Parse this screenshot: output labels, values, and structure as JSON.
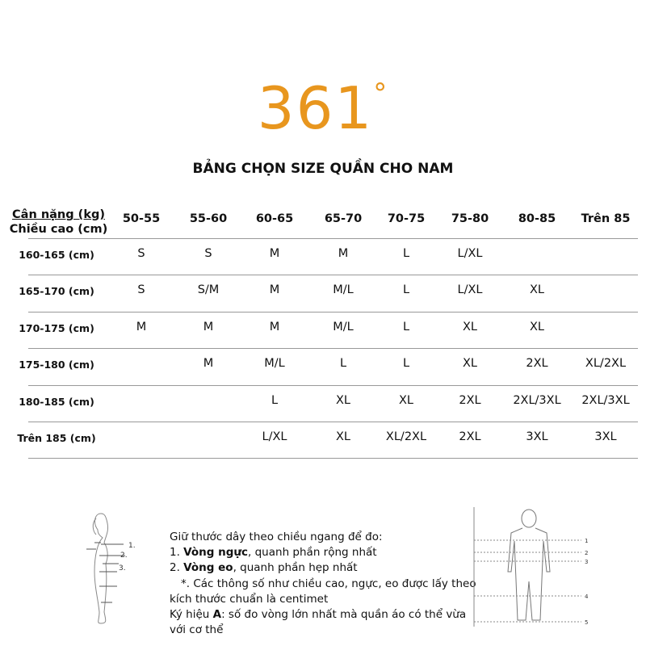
{
  "brand": {
    "logo": "361°",
    "color": "#e8961e"
  },
  "title": "BẢNG CHỌN SIZE QUẦN CHO NAM",
  "table": {
    "header_weight": "Cân nặng (kg)",
    "header_height": "Chiều cao (cm)",
    "columns": [
      "50-55",
      "55-60",
      "60-65",
      "65-70",
      "70-75",
      "75-80",
      "80-85",
      "Trên 85"
    ],
    "rows": [
      {
        "label": "160-165 (cm)",
        "cells": [
          "S",
          "S",
          "M",
          "M",
          "L",
          "L/XL",
          "",
          ""
        ]
      },
      {
        "label": "165-170 (cm)",
        "cells": [
          "S",
          "S/M",
          "M",
          "M/L",
          "L",
          "L/XL",
          "XL",
          ""
        ]
      },
      {
        "label": "170-175 (cm)",
        "cells": [
          "M",
          "M",
          "M",
          "M/L",
          "L",
          "XL",
          "XL",
          ""
        ]
      },
      {
        "label": "175-180 (cm)",
        "cells": [
          "",
          "M",
          "M/L",
          "L",
          "L",
          "XL",
          "2XL",
          "XL/2XL"
        ]
      },
      {
        "label": "180-185 (cm)",
        "cells": [
          "",
          "",
          "L",
          "XL",
          "XL",
          "2XL",
          "2XL/3XL",
          "2XL/3XL"
        ]
      },
      {
        "label": "Trên 185 (cm)",
        "cells": [
          "",
          "",
          "L/XL",
          "XL",
          "XL/2XL",
          "2XL",
          "3XL",
          "3XL"
        ]
      }
    ]
  },
  "guide": {
    "intro": "Giữ thước dây theo chiều ngang để đo:",
    "item1_num": "1. ",
    "item1_bold": "Vòng ngực",
    "item1_rest": ", quanh phần rộng nhất",
    "item2_num": "2. ",
    "item2_bold": "Vòng eo",
    "item2_rest": ", quanh phần hẹp nhất",
    "note": "*. Các thông số như chiều cao, ngực, eo được lấy theo kích thước chuẩn là centimet",
    "symbol_pre": "Ký hiệu ",
    "symbol_bold": "A",
    "symbol_rest": ": số đo vòng lớn nhất mà quần áo có thể vừa với cơ thể",
    "woman_labels": [
      "1.",
      "2.",
      "3."
    ],
    "man_labels": [
      "1",
      "2",
      "3",
      "4",
      "5"
    ]
  }
}
